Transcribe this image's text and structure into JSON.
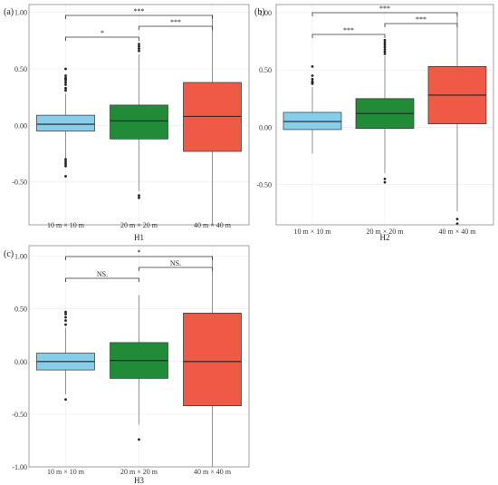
{
  "chart_data": [
    {
      "type": "box",
      "panel_label": "(a)",
      "title": "",
      "xlabel": "H1",
      "ylabel": "",
      "ylim": [
        -0.88,
        1.07
      ],
      "yticks": [
        -0.5,
        0.0,
        0.5,
        1.0
      ],
      "ytick_labels": [
        "-0.50",
        "0.00",
        "0.50",
        "1.00"
      ],
      "categories": [
        "10 m × 10 m",
        "20 m × 20 m",
        "40 m × 40 m"
      ],
      "colors": [
        "#87CEEB",
        "#228B37",
        "#EE5A45"
      ],
      "grid": true,
      "boxes": [
        {
          "whisker_low": -0.3,
          "q1": -0.05,
          "median": 0.01,
          "q3": 0.09,
          "whisker_high": 0.28,
          "outliers": [
            0.5,
            0.44,
            0.42,
            0.41,
            0.4,
            0.38,
            0.36,
            0.33,
            0.31,
            -0.3,
            -0.32,
            -0.34,
            -0.36,
            -0.45
          ]
        },
        {
          "whisker_low": -0.58,
          "q1": -0.12,
          "median": 0.04,
          "q3": 0.18,
          "whisker_high": 0.63,
          "outliers": [
            0.72,
            0.7,
            0.68,
            0.66,
            -0.62,
            -0.64
          ]
        },
        {
          "whisker_low": -0.88,
          "q1": -0.23,
          "median": 0.08,
          "q3": 0.38,
          "whisker_high": 0.98,
          "outliers": []
        }
      ],
      "comparisons": [
        {
          "from": 0,
          "to": 1,
          "label": "*",
          "level": 0
        },
        {
          "from": 1,
          "to": 2,
          "label": "***",
          "level": 1
        },
        {
          "from": 0,
          "to": 2,
          "label": "***",
          "level": 2
        }
      ]
    },
    {
      "type": "box",
      "panel_label": "(b)",
      "title": "",
      "xlabel": "H2",
      "ylabel": "",
      "ylim": [
        -0.85,
        1.07
      ],
      "yticks": [
        -0.5,
        0.0,
        0.5,
        1.0
      ],
      "ytick_labels": [
        "-0.50",
        "0.00",
        "0.50",
        "1.00"
      ],
      "categories": [
        "10 m × 10 m",
        "20 m × 20 m",
        "40 m × 40 m"
      ],
      "colors": [
        "#87CEEB",
        "#228B37",
        "#EE5A45"
      ],
      "grid": true,
      "boxes": [
        {
          "whisker_low": -0.23,
          "q1": -0.02,
          "median": 0.05,
          "q3": 0.13,
          "whisker_high": 0.35,
          "outliers": [
            0.53,
            0.45,
            0.42,
            0.4,
            0.39,
            0.38
          ]
        },
        {
          "whisker_low": -0.4,
          "q1": -0.01,
          "median": 0.12,
          "q3": 0.25,
          "whisker_high": 0.62,
          "outliers": [
            0.76,
            0.74,
            0.72,
            0.7,
            0.68,
            0.66,
            0.64,
            -0.45,
            -0.48
          ]
        },
        {
          "whisker_low": -0.73,
          "q1": 0.03,
          "median": 0.28,
          "q3": 0.53,
          "whisker_high": 1.0,
          "outliers": [
            -0.8,
            -0.84
          ]
        }
      ],
      "comparisons": [
        {
          "from": 0,
          "to": 1,
          "label": "***",
          "level": 0
        },
        {
          "from": 1,
          "to": 2,
          "label": "***",
          "level": 1
        },
        {
          "from": 0,
          "to": 2,
          "label": "***",
          "level": 2
        }
      ]
    },
    {
      "type": "box",
      "panel_label": "(c)",
      "title": "",
      "xlabel": "H3",
      "ylabel": "",
      "ylim": [
        -1.0,
        1.1
      ],
      "yticks": [
        -1.0,
        -0.5,
        0.0,
        0.5,
        1.0
      ],
      "ytick_labels": [
        "-1.00",
        "-0.50",
        "0.00",
        "0.50",
        "1.00"
      ],
      "categories": [
        "10 m × 10 m",
        "20 m × 20 m",
        "40 m × 40 m"
      ],
      "colors": [
        "#87CEEB",
        "#228B37",
        "#EE5A45"
      ],
      "grid": true,
      "boxes": [
        {
          "whisker_low": -0.31,
          "q1": -0.08,
          "median": 0.0,
          "q3": 0.08,
          "whisker_high": 0.32,
          "outliers": [
            0.47,
            0.45,
            0.42,
            0.39,
            0.35,
            -0.36
          ]
        },
        {
          "whisker_low": -0.6,
          "q1": -0.16,
          "median": 0.01,
          "q3": 0.18,
          "whisker_high": 0.63,
          "outliers": [
            -0.74
          ]
        },
        {
          "whisker_low": -1.0,
          "q1": -0.42,
          "median": 0.0,
          "q3": 0.46,
          "whisker_high": 1.0,
          "outliers": []
        }
      ],
      "comparisons": [
        {
          "from": 0,
          "to": 1,
          "label": "NS.",
          "level": 0
        },
        {
          "from": 1,
          "to": 2,
          "label": "NS.",
          "level": 1
        },
        {
          "from": 0,
          "to": 2,
          "label": "*",
          "level": 2
        }
      ]
    }
  ]
}
